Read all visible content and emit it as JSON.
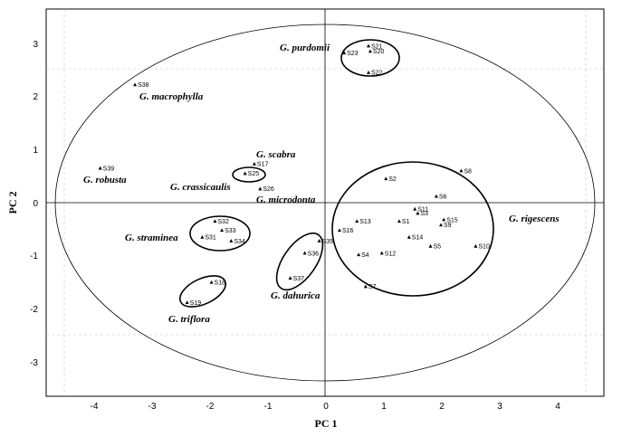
{
  "chart_data": {
    "type": "scatter",
    "xlabel": "PC 1",
    "ylabel": "PC 2",
    "xlim": [
      -4.5,
      4.5
    ],
    "ylim": [
      -3.5,
      3.5
    ],
    "x_ticks": [
      -4,
      -3,
      -2,
      -1,
      0,
      1,
      2,
      3,
      4
    ],
    "y_ticks": [
      -3,
      -2,
      -1,
      0,
      1,
      2,
      3
    ],
    "grid": false,
    "points": [
      {
        "label": "S21",
        "x": 0.75,
        "y": 2.95
      },
      {
        "label": "S20",
        "x": 0.78,
        "y": 2.85
      },
      {
        "label": "S23",
        "x": 0.33,
        "y": 2.82
      },
      {
        "label": "S22",
        "x": 0.75,
        "y": 2.45
      },
      {
        "label": "S38",
        "x": -3.28,
        "y": 2.22
      },
      {
        "label": "S39",
        "x": -3.88,
        "y": 0.65
      },
      {
        "label": "S17",
        "x": -1.22,
        "y": 0.73
      },
      {
        "label": "S25",
        "x": -1.38,
        "y": 0.55
      },
      {
        "label": "S26",
        "x": -1.12,
        "y": 0.26
      },
      {
        "label": "S32",
        "x": -1.9,
        "y": -0.35
      },
      {
        "label": "S33",
        "x": -1.78,
        "y": -0.52
      },
      {
        "label": "S31",
        "x": -2.12,
        "y": -0.65
      },
      {
        "label": "S34",
        "x": -1.62,
        "y": -0.72
      },
      {
        "label": "S35",
        "x": -0.1,
        "y": -0.72
      },
      {
        "label": "S36",
        "x": -0.35,
        "y": -0.95
      },
      {
        "label": "S37",
        "x": -0.6,
        "y": -1.42
      },
      {
        "label": "S18",
        "x": -1.96,
        "y": -1.5
      },
      {
        "label": "S19",
        "x": -2.38,
        "y": -1.88
      },
      {
        "label": "S2",
        "x": 1.05,
        "y": 0.45
      },
      {
        "label": "S6",
        "x": 1.92,
        "y": 0.12
      },
      {
        "label": "S8",
        "x": 2.35,
        "y": 0.6
      },
      {
        "label": "S11",
        "x": 1.55,
        "y": -0.12
      },
      {
        "label": "S3",
        "x": 1.6,
        "y": -0.2
      },
      {
        "label": "S1",
        "x": 1.28,
        "y": -0.35
      },
      {
        "label": "S13",
        "x": 0.55,
        "y": -0.35
      },
      {
        "label": "S15",
        "x": 2.05,
        "y": -0.32
      },
      {
        "label": "S9",
        "x": 2.0,
        "y": -0.42
      },
      {
        "label": "S16",
        "x": 0.25,
        "y": -0.52
      },
      {
        "label": "S14",
        "x": 1.45,
        "y": -0.65
      },
      {
        "label": "S5",
        "x": 1.82,
        "y": -0.82
      },
      {
        "label": "S10",
        "x": 2.6,
        "y": -0.82
      },
      {
        "label": "S12",
        "x": 0.98,
        "y": -0.95
      },
      {
        "label": "S4",
        "x": 0.58,
        "y": -0.98
      },
      {
        "label": "S7",
        "x": 0.7,
        "y": -1.58
      }
    ],
    "group_labels": [
      {
        "text": "G. purdomii"
      },
      {
        "text": "G. macrophylla"
      },
      {
        "text": "G. scabra"
      },
      {
        "text": "G. robusta"
      },
      {
        "text": "G. crassicaulis"
      },
      {
        "text": "G. microdonta"
      },
      {
        "text": "G. rigescens"
      },
      {
        "text": "G. straminea"
      },
      {
        "text": "G. dahurica"
      },
      {
        "text": "G. triflora"
      }
    ]
  }
}
